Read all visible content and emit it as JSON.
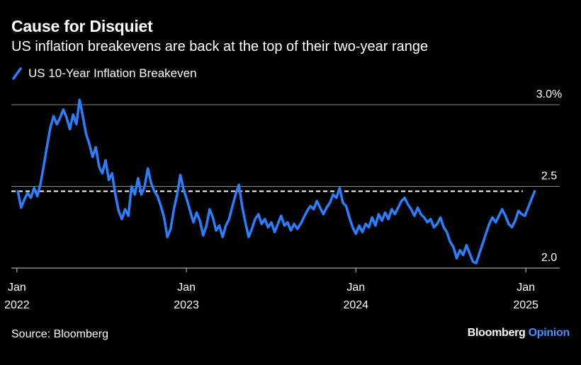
{
  "header": {
    "title": "Cause for Disquiet",
    "subtitle": "US inflation breakevens are back at the top of their two-year range"
  },
  "legend": {
    "label": "US 10-Year Inflation Breakeven"
  },
  "footer": {
    "source": "Source: Bloomberg",
    "brand": "Bloomberg",
    "brand_suffix": "Opinion"
  },
  "colors": {
    "background": "#000000",
    "line": "#2a7fff",
    "text": "#ffffff",
    "grid": "#8a8a8a",
    "reference": "#ffffff"
  },
  "chart_data": {
    "type": "line",
    "x_axis": {
      "range": [
        "2021-12-20",
        "2025-03-15"
      ],
      "ticks": [
        {
          "date": "2022-01-01",
          "month": "Jan",
          "year": "2022"
        },
        {
          "date": "2023-01-01",
          "month": "Jan",
          "year": "2023"
        },
        {
          "date": "2024-01-01",
          "month": "Jan",
          "year": "2024"
        },
        {
          "date": "2025-01-01",
          "month": "Jan",
          "year": "2025"
        }
      ]
    },
    "y_axis": {
      "range": [
        2.0,
        3.0
      ],
      "ticks": [
        {
          "value": 2.0,
          "label": "2.0"
        },
        {
          "value": 2.5,
          "label": "2.5"
        },
        {
          "value": 3.0,
          "label": "3.0%"
        }
      ],
      "gridlines": true,
      "side": "right"
    },
    "reference_line": {
      "value": 2.47,
      "style": "dashed"
    },
    "series": [
      {
        "name": "US 10-Year Inflation Breakeven",
        "points": [
          [
            "2022-01-03",
            2.47
          ],
          [
            "2022-01-10",
            2.37
          ],
          [
            "2022-01-17",
            2.42
          ],
          [
            "2022-01-24",
            2.46
          ],
          [
            "2022-01-31",
            2.43
          ],
          [
            "2022-02-07",
            2.49
          ],
          [
            "2022-02-14",
            2.44
          ],
          [
            "2022-02-21",
            2.52
          ],
          [
            "2022-02-28",
            2.63
          ],
          [
            "2022-03-07",
            2.75
          ],
          [
            "2022-03-14",
            2.86
          ],
          [
            "2022-03-21",
            2.93
          ],
          [
            "2022-03-28",
            2.88
          ],
          [
            "2022-04-04",
            2.92
          ],
          [
            "2022-04-11",
            2.97
          ],
          [
            "2022-04-18",
            2.92
          ],
          [
            "2022-04-25",
            2.85
          ],
          [
            "2022-05-02",
            2.94
          ],
          [
            "2022-05-09",
            2.88
          ],
          [
            "2022-05-16",
            3.03
          ],
          [
            "2022-05-23",
            2.93
          ],
          [
            "2022-05-30",
            2.82
          ],
          [
            "2022-06-06",
            2.76
          ],
          [
            "2022-06-13",
            2.68
          ],
          [
            "2022-06-20",
            2.74
          ],
          [
            "2022-06-27",
            2.62
          ],
          [
            "2022-07-04",
            2.58
          ],
          [
            "2022-07-11",
            2.66
          ],
          [
            "2022-07-18",
            2.54
          ],
          [
            "2022-07-25",
            2.58
          ],
          [
            "2022-08-01",
            2.45
          ],
          [
            "2022-08-08",
            2.35
          ],
          [
            "2022-08-15",
            2.3
          ],
          [
            "2022-08-22",
            2.36
          ],
          [
            "2022-08-29",
            2.32
          ],
          [
            "2022-09-05",
            2.5
          ],
          [
            "2022-09-12",
            2.45
          ],
          [
            "2022-09-19",
            2.55
          ],
          [
            "2022-09-26",
            2.45
          ],
          [
            "2022-10-03",
            2.5
          ],
          [
            "2022-10-10",
            2.61
          ],
          [
            "2022-10-17",
            2.52
          ],
          [
            "2022-10-24",
            2.47
          ],
          [
            "2022-10-31",
            2.44
          ],
          [
            "2022-11-07",
            2.38
          ],
          [
            "2022-11-14",
            2.31
          ],
          [
            "2022-11-21",
            2.19
          ],
          [
            "2022-11-28",
            2.24
          ],
          [
            "2022-12-05",
            2.36
          ],
          [
            "2022-12-12",
            2.45
          ],
          [
            "2022-12-19",
            2.57
          ],
          [
            "2022-12-26",
            2.48
          ],
          [
            "2023-01-02",
            2.42
          ],
          [
            "2023-01-09",
            2.35
          ],
          [
            "2023-01-16",
            2.28
          ],
          [
            "2023-01-23",
            2.34
          ],
          [
            "2023-01-30",
            2.29
          ],
          [
            "2023-02-06",
            2.2
          ],
          [
            "2023-02-13",
            2.26
          ],
          [
            "2023-02-20",
            2.36
          ],
          [
            "2023-02-27",
            2.31
          ],
          [
            "2023-03-06",
            2.23
          ],
          [
            "2023-03-13",
            2.26
          ],
          [
            "2023-03-20",
            2.19
          ],
          [
            "2023-03-27",
            2.26
          ],
          [
            "2023-04-03",
            2.3
          ],
          [
            "2023-04-10",
            2.38
          ],
          [
            "2023-04-17",
            2.45
          ],
          [
            "2023-04-24",
            2.51
          ],
          [
            "2023-05-01",
            2.38
          ],
          [
            "2023-05-08",
            2.28
          ],
          [
            "2023-05-15",
            2.19
          ],
          [
            "2023-05-22",
            2.24
          ],
          [
            "2023-05-29",
            2.3
          ],
          [
            "2023-06-05",
            2.33
          ],
          [
            "2023-06-12",
            2.27
          ],
          [
            "2023-06-19",
            2.3
          ],
          [
            "2023-06-26",
            2.25
          ],
          [
            "2023-07-03",
            2.28
          ],
          [
            "2023-07-10",
            2.22
          ],
          [
            "2023-07-17",
            2.27
          ],
          [
            "2023-07-24",
            2.32
          ],
          [
            "2023-07-31",
            2.26
          ],
          [
            "2023-08-07",
            2.28
          ],
          [
            "2023-08-14",
            2.23
          ],
          [
            "2023-08-21",
            2.27
          ],
          [
            "2023-08-28",
            2.24
          ],
          [
            "2023-09-04",
            2.27
          ],
          [
            "2023-09-11",
            2.31
          ],
          [
            "2023-09-18",
            2.35
          ],
          [
            "2023-09-25",
            2.38
          ],
          [
            "2023-10-02",
            2.36
          ],
          [
            "2023-10-09",
            2.41
          ],
          [
            "2023-10-16",
            2.37
          ],
          [
            "2023-10-23",
            2.33
          ],
          [
            "2023-10-30",
            2.37
          ],
          [
            "2023-11-06",
            2.4
          ],
          [
            "2023-11-13",
            2.45
          ],
          [
            "2023-11-20",
            2.43
          ],
          [
            "2023-11-27",
            2.49
          ],
          [
            "2023-12-04",
            2.4
          ],
          [
            "2023-12-11",
            2.38
          ],
          [
            "2023-12-18",
            2.31
          ],
          [
            "2023-12-25",
            2.25
          ],
          [
            "2024-01-01",
            2.21
          ],
          [
            "2024-01-08",
            2.26
          ],
          [
            "2024-01-15",
            2.22
          ],
          [
            "2024-01-22",
            2.27
          ],
          [
            "2024-01-29",
            2.25
          ],
          [
            "2024-02-05",
            2.31
          ],
          [
            "2024-02-12",
            2.26
          ],
          [
            "2024-02-19",
            2.33
          ],
          [
            "2024-02-26",
            2.29
          ],
          [
            "2024-03-04",
            2.34
          ],
          [
            "2024-03-11",
            2.3
          ],
          [
            "2024-03-18",
            2.36
          ],
          [
            "2024-03-25",
            2.33
          ],
          [
            "2024-04-01",
            2.37
          ],
          [
            "2024-04-08",
            2.41
          ],
          [
            "2024-04-15",
            2.43
          ],
          [
            "2024-04-22",
            2.39
          ],
          [
            "2024-04-29",
            2.36
          ],
          [
            "2024-05-06",
            2.32
          ],
          [
            "2024-05-13",
            2.37
          ],
          [
            "2024-05-20",
            2.33
          ],
          [
            "2024-05-27",
            2.31
          ],
          [
            "2024-06-03",
            2.28
          ],
          [
            "2024-06-10",
            2.3
          ],
          [
            "2024-06-17",
            2.25
          ],
          [
            "2024-06-24",
            2.27
          ],
          [
            "2024-07-01",
            2.31
          ],
          [
            "2024-07-08",
            2.25
          ],
          [
            "2024-07-15",
            2.22
          ],
          [
            "2024-07-22",
            2.16
          ],
          [
            "2024-07-29",
            2.13
          ],
          [
            "2024-08-05",
            2.06
          ],
          [
            "2024-08-12",
            2.11
          ],
          [
            "2024-08-19",
            2.08
          ],
          [
            "2024-08-26",
            2.14
          ],
          [
            "2024-09-02",
            2.09
          ],
          [
            "2024-09-09",
            2.04
          ],
          [
            "2024-09-16",
            2.03
          ],
          [
            "2024-09-23",
            2.09
          ],
          [
            "2024-09-30",
            2.15
          ],
          [
            "2024-10-07",
            2.21
          ],
          [
            "2024-10-14",
            2.27
          ],
          [
            "2024-10-21",
            2.31
          ],
          [
            "2024-10-28",
            2.28
          ],
          [
            "2024-11-04",
            2.32
          ],
          [
            "2024-11-11",
            2.36
          ],
          [
            "2024-11-18",
            2.32
          ],
          [
            "2024-11-25",
            2.27
          ],
          [
            "2024-12-02",
            2.25
          ],
          [
            "2024-12-09",
            2.29
          ],
          [
            "2024-12-16",
            2.35
          ],
          [
            "2024-12-23",
            2.33
          ],
          [
            "2024-12-30",
            2.32
          ],
          [
            "2025-01-06",
            2.37
          ],
          [
            "2025-01-13",
            2.42
          ],
          [
            "2025-01-20",
            2.47
          ]
        ]
      }
    ]
  }
}
